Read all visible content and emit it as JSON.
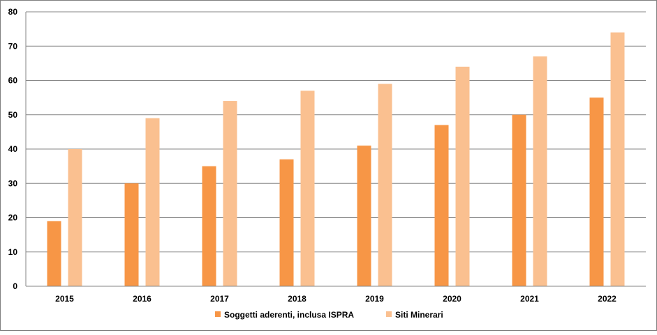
{
  "chart_data": {
    "type": "bar",
    "categories": [
      "2015",
      "2016",
      "2017",
      "2018",
      "2019",
      "2020",
      "2021",
      "2022"
    ],
    "series": [
      {
        "name": "Soggetti aderenti, inclusa ISPRA",
        "values": [
          19,
          30,
          35,
          37,
          41,
          47,
          50,
          55
        ],
        "color": "#f79646"
      },
      {
        "name": "Siti Minerari",
        "values": [
          40,
          49,
          54,
          57,
          59,
          64,
          67,
          74
        ],
        "color": "#fac090"
      }
    ],
    "ylim": [
      0,
      80
    ],
    "yticks": [
      0,
      10,
      20,
      30,
      40,
      50,
      60,
      70,
      80
    ],
    "grid": true,
    "legend_position": "bottom",
    "title": "",
    "xlabel": "",
    "ylabel": ""
  }
}
